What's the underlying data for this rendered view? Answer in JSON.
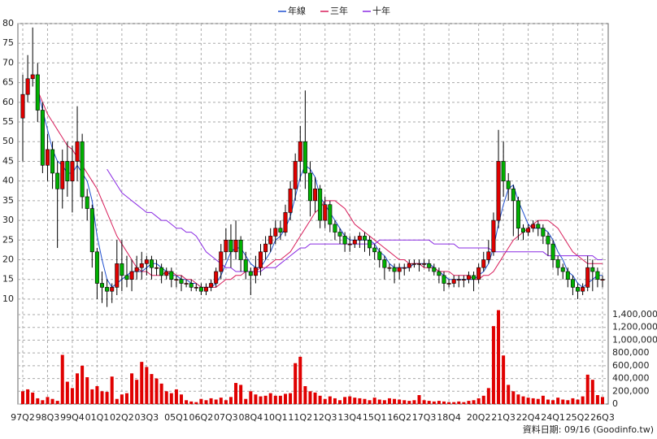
{
  "chart_data": {
    "type": "candlestick",
    "categories": [
      "97Q2",
      null,
      null,
      null,
      null,
      "98Q3",
      null,
      null,
      null,
      null,
      "99Q4",
      null,
      null,
      null,
      null,
      "01Q1",
      null,
      null,
      null,
      null,
      "02Q2",
      null,
      null,
      null,
      null,
      "03Q3",
      null,
      null,
      null,
      null,
      null,
      "05Q1",
      null,
      null,
      null,
      null,
      "06Q2",
      null,
      null,
      null,
      null,
      "07Q3",
      null,
      null,
      null,
      null,
      "08Q4",
      null,
      null,
      null,
      null,
      "10Q1",
      null,
      null,
      null,
      null,
      "11Q2",
      null,
      null,
      null,
      null,
      "12Q3",
      null,
      null,
      null,
      null,
      "13Q4",
      null,
      null,
      null,
      null,
      "15Q1",
      null,
      null,
      null,
      null,
      "16Q2",
      null,
      null,
      null,
      null,
      "17Q3",
      null,
      null,
      null,
      null,
      "18Q4",
      null,
      null,
      null,
      null,
      null,
      "20Q2",
      null,
      null,
      null,
      null,
      "21Q3",
      null,
      null,
      null,
      null,
      "22Q4",
      null,
      null,
      null,
      null,
      "24Q1",
      null,
      null,
      null,
      null,
      "25Q2",
      null,
      null,
      null,
      null,
      "26Q3"
    ],
    "open": [
      56,
      62,
      66,
      67,
      58,
      44,
      48,
      42,
      38,
      45,
      40,
      45,
      50,
      36,
      33,
      22,
      14,
      13,
      12,
      13,
      19,
      16,
      15,
      17,
      18,
      19,
      20,
      18,
      18,
      16,
      17,
      15,
      15,
      14,
      14,
      13,
      13,
      12,
      13,
      14,
      17,
      22,
      25,
      22,
      25,
      20,
      17,
      16,
      18,
      22,
      24,
      26,
      28,
      27,
      32,
      38,
      45,
      50,
      42,
      35,
      38,
      30,
      34,
      29,
      27,
      26,
      24,
      24,
      25,
      26,
      25,
      23,
      22,
      20,
      18,
      18,
      17,
      18,
      18,
      19,
      19,
      19,
      19,
      18,
      17,
      16,
      14,
      14,
      15,
      15,
      15,
      16,
      15,
      18,
      20,
      22,
      30,
      45,
      40,
      38,
      35,
      28,
      27,
      28,
      29,
      28,
      26,
      24,
      20,
      18,
      17,
      15,
      13,
      12,
      13,
      18,
      17,
      15
    ],
    "high": [
      67,
      72,
      79,
      70,
      60,
      52,
      50,
      45,
      48,
      50,
      49,
      59,
      52,
      38,
      34,
      23,
      17,
      15,
      14,
      25,
      25,
      21,
      20,
      21,
      22,
      21,
      21,
      20,
      19,
      18,
      18,
      16,
      16,
      15,
      15,
      14,
      14,
      14,
      15,
      18,
      24,
      28,
      29,
      30,
      26,
      22,
      18,
      21,
      24,
      26,
      28,
      30,
      30,
      34,
      40,
      47,
      54,
      63,
      45,
      41,
      39,
      36,
      35,
      30,
      28,
      27,
      26,
      26,
      27,
      27,
      26,
      24,
      23,
      21,
      19,
      19,
      19,
      19,
      20,
      20,
      20,
      20,
      20,
      19,
      18,
      17,
      15,
      16,
      16,
      16,
      17,
      17,
      19,
      22,
      25,
      32,
      53,
      50,
      42,
      39,
      36,
      29,
      29,
      30,
      30,
      29,
      27,
      25,
      21,
      19,
      18,
      16,
      14,
      14,
      21,
      20,
      18,
      16
    ],
    "low": [
      45,
      60,
      64,
      55,
      42,
      40,
      38,
      23,
      33,
      36,
      32,
      40,
      33,
      30,
      18,
      10,
      9,
      8,
      9,
      11,
      12,
      13,
      12,
      15,
      15,
      16,
      15,
      16,
      14,
      15,
      13,
      13,
      12,
      13,
      12,
      12,
      11,
      11,
      12,
      13,
      15,
      20,
      18,
      20,
      17,
      15,
      11,
      14,
      16,
      20,
      22,
      24,
      25,
      26,
      30,
      35,
      40,
      38,
      31,
      32,
      28,
      28,
      27,
      25,
      24,
      22,
      22,
      23,
      23,
      22,
      21,
      20,
      18,
      15,
      17,
      14,
      15,
      16,
      17,
      18,
      17,
      18,
      17,
      16,
      14,
      12,
      13,
      13,
      13,
      13,
      14,
      12,
      14,
      17,
      19,
      21,
      28,
      36,
      35,
      26,
      25,
      25,
      26,
      27,
      26,
      24,
      21,
      18,
      16,
      15,
      13,
      11,
      10,
      11,
      12,
      12,
      13,
      13
    ],
    "close": [
      62,
      66,
      67,
      58,
      44,
      48,
      42,
      38,
      45,
      40,
      45,
      50,
      36,
      33,
      22,
      14,
      13,
      12,
      13,
      19,
      16,
      15,
      17,
      18,
      19,
      20,
      18,
      18,
      16,
      17,
      15,
      15,
      14,
      14,
      13,
      13,
      12,
      13,
      14,
      17,
      22,
      25,
      22,
      25,
      20,
      17,
      16,
      18,
      22,
      24,
      26,
      28,
      27,
      32,
      38,
      45,
      50,
      42,
      35,
      38,
      30,
      34,
      29,
      27,
      26,
      24,
      24,
      25,
      26,
      25,
      23,
      22,
      20,
      18,
      18,
      17,
      18,
      18,
      19,
      19,
      19,
      19,
      18,
      17,
      16,
      14,
      14,
      15,
      15,
      15,
      16,
      15,
      18,
      20,
      22,
      30,
      45,
      40,
      38,
      35,
      28,
      27,
      28,
      29,
      28,
      26,
      24,
      20,
      18,
      17,
      15,
      13,
      12,
      13,
      18,
      17,
      15,
      15
    ],
    "up_color": "#e00000",
    "down_color": "#00b000",
    "series": [
      {
        "name": "年線",
        "color": "#2050d0",
        "values": [
          null,
          null,
          null,
          63,
          58,
          53,
          48,
          45,
          44,
          42,
          42,
          44,
          42,
          40,
          35,
          26,
          20,
          15,
          13,
          14,
          15,
          16,
          17,
          17,
          17,
          18,
          19,
          19,
          18,
          17,
          16,
          16,
          15,
          15,
          14,
          14,
          13,
          13,
          13,
          14,
          16,
          19,
          22,
          23,
          23,
          21,
          19,
          18,
          18,
          20,
          22,
          25,
          26,
          28,
          31,
          36,
          41,
          44,
          43,
          41,
          36,
          34,
          32,
          30,
          28,
          26,
          25,
          25,
          25,
          25,
          25,
          24,
          22,
          21,
          19,
          18,
          18,
          18,
          18,
          19,
          19,
          19,
          19,
          18,
          17,
          16,
          15,
          15,
          15,
          15,
          15,
          15,
          16,
          17,
          19,
          23,
          29,
          34,
          38,
          39,
          35,
          32,
          29,
          28,
          28,
          28,
          27,
          25,
          22,
          20,
          17,
          16,
          14,
          13,
          14,
          15,
          16,
          16
        ]
      },
      {
        "name": "三年",
        "color": "#d81e5b",
        "values": [
          null,
          null,
          null,
          63,
          60,
          57,
          55,
          53,
          51,
          49,
          48,
          46,
          44,
          42,
          40,
          38,
          35,
          32,
          29,
          26,
          24,
          22,
          20,
          18,
          17,
          17,
          16,
          16,
          16,
          17,
          17,
          16,
          16,
          15,
          15,
          14,
          13,
          13,
          13,
          13,
          14,
          15,
          15,
          16,
          16,
          17,
          17,
          17,
          18,
          18,
          19,
          20,
          20,
          21,
          22,
          24,
          26,
          28,
          30,
          32,
          33,
          35,
          35,
          35,
          34,
          33,
          31,
          29,
          28,
          27,
          26,
          25,
          24,
          23,
          22,
          21,
          20,
          20,
          19,
          19,
          19,
          18,
          18,
          18,
          17,
          17,
          17,
          16,
          16,
          16,
          16,
          15,
          15,
          16,
          16,
          17,
          19,
          21,
          23,
          25,
          26,
          27,
          28,
          29,
          30,
          30,
          30,
          29,
          28,
          26,
          24,
          22,
          21,
          20,
          19,
          19,
          19,
          19
        ]
      },
      {
        "name": "十年",
        "color": "#8a2be2",
        "values": [
          null,
          null,
          null,
          null,
          null,
          null,
          null,
          null,
          null,
          null,
          null,
          null,
          null,
          null,
          null,
          null,
          null,
          43,
          41,
          39,
          37,
          36,
          35,
          34,
          33,
          32,
          32,
          31,
          30,
          30,
          29,
          28,
          28,
          27,
          27,
          26,
          24,
          22,
          21,
          20,
          19,
          18,
          18,
          17,
          17,
          17,
          17,
          17,
          17,
          18,
          18,
          18,
          19,
          20,
          21,
          22,
          23,
          23,
          24,
          24,
          24,
          24,
          24,
          24,
          24,
          24,
          24,
          24,
          24,
          24,
          24,
          24,
          25,
          25,
          25,
          25,
          25,
          25,
          25,
          25,
          25,
          25,
          25,
          24,
          24,
          24,
          24,
          24,
          23,
          23,
          23,
          23,
          23,
          23,
          23,
          22,
          22,
          22,
          22,
          22,
          22,
          22,
          22,
          22,
          22,
          22,
          21,
          21,
          21,
          21,
          21,
          21,
          21,
          21,
          21,
          21,
          20,
          20
        ]
      }
    ],
    "volume": {
      "color": "#e00000",
      "axis": "y2",
      "values": [
        200000,
        230000,
        180000,
        90000,
        60000,
        110000,
        80000,
        50000,
        770000,
        350000,
        250000,
        480000,
        600000,
        420000,
        230000,
        280000,
        200000,
        190000,
        430000,
        80000,
        150000,
        170000,
        480000,
        380000,
        660000,
        580000,
        470000,
        400000,
        320000,
        200000,
        170000,
        230000,
        150000,
        60000,
        40000,
        30000,
        80000,
        60000,
        90000,
        70000,
        100000,
        60000,
        110000,
        330000,
        300000,
        80000,
        200000,
        150000,
        120000,
        130000,
        170000,
        130000,
        130000,
        160000,
        170000,
        640000,
        740000,
        280000,
        200000,
        180000,
        130000,
        80000,
        120000,
        90000,
        60000,
        110000,
        120000,
        100000,
        90000,
        80000,
        60000,
        100000,
        70000,
        60000,
        90000,
        80000,
        70000,
        60000,
        50000,
        60000,
        140000,
        60000,
        50000,
        40000,
        50000,
        40000,
        30000,
        30000,
        40000,
        30000,
        50000,
        60000,
        90000,
        130000,
        250000,
        1220000,
        1470000,
        760000,
        300000,
        200000,
        150000,
        120000,
        100000,
        90000,
        80000,
        130000,
        70000,
        60000,
        100000,
        70000,
        60000,
        90000,
        70000,
        120000,
        460000,
        380000,
        140000,
        110000
      ]
    },
    "ylim": [
      7.5,
      80
    ],
    "yticks": [
      10,
      15,
      20,
      25,
      30,
      35,
      40,
      45,
      50,
      55,
      60,
      65,
      70,
      75,
      80
    ],
    "y2lim": [
      0,
      1400000
    ],
    "y2ticks": [
      0,
      {
        "value": 200000,
        "label": "200,000"
      },
      {
        "value": 400000,
        "label": "400,000"
      },
      {
        "value": 600000,
        "label": "600,000"
      },
      {
        "value": 800000,
        "label": "800,000"
      },
      {
        "value": 1000000,
        "label": "1,000,000"
      },
      {
        "value": 1200000,
        "label": "1,200,000"
      },
      {
        "value": 1400000,
        "label": "1,400,000"
      }
    ],
    "grid": true,
    "legend": "top",
    "note": "資料日期: 09/16 (Goodinfo.tw)"
  }
}
